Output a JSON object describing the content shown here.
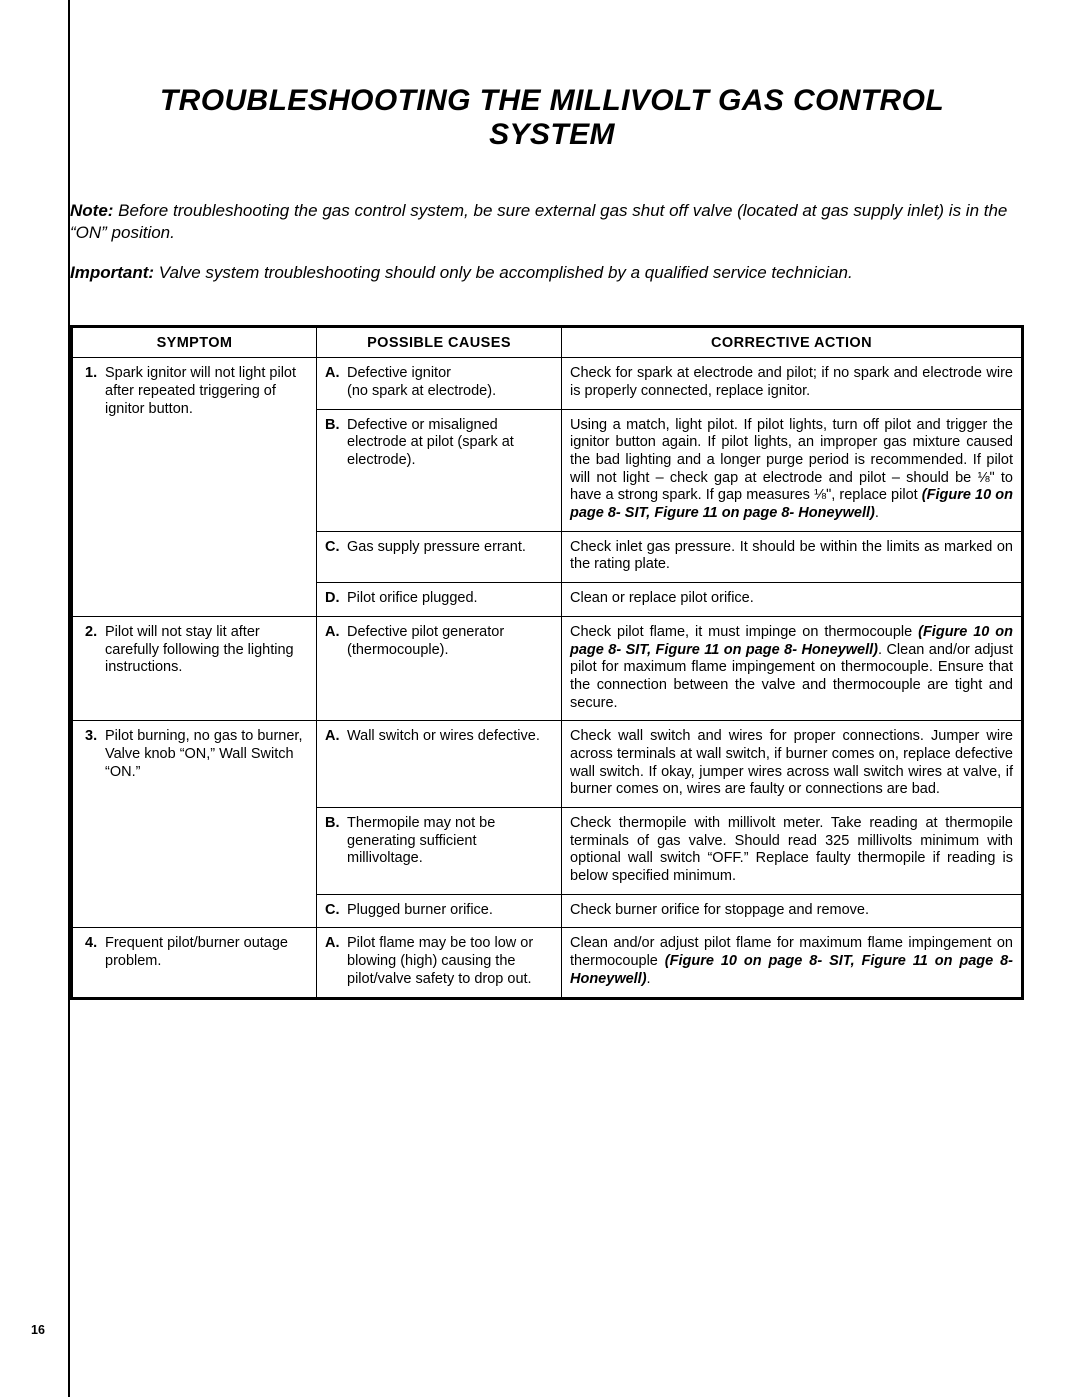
{
  "title": "TROUBLESHOOTING THE MILLIVOLT GAS CONTROL SYSTEM",
  "note_lead": "Note:",
  "note_text": " Before troubleshooting the gas control system, be sure external gas shut off valve (located at gas supply inlet) is in the “ON” position.",
  "important_lead": "Important:",
  "important_text": " Valve system troubleshooting should only be accomplished by a qualified service technician.",
  "headers": {
    "symptom": "SYMPTOM",
    "causes": "POSSIBLE CAUSES",
    "action": "CORRECTIVE ACTION"
  },
  "s1": {
    "n": "1.",
    "t": "Spark ignitor will not light pilot after repeated triggering of ignitor button."
  },
  "s1a": {
    "l": "A.",
    "t": "Defective ignitor\n(no spark at electrode)."
  },
  "s1a_act": "Check for spark at electrode and pilot; if no spark and electrode wire is properly connected, replace ignitor.",
  "s1b": {
    "l": "B.",
    "t": "Defective or misaligned electrode at pilot (spark at electrode)."
  },
  "s1b_act_1": "Using a match, light pilot. If pilot lights, turn off pilot and trigger the ignitor button again. If pilot lights, an improper gas mixture caused the bad lighting and a longer purge period is recommended. If pilot will not light – check gap at electrode and pilot – should be ⅛ʺ to have a strong spark. If gap measures ⅛ʺ, replace pilot ",
  "s1b_act_bi": "(Figure 10 on page 8- SIT, Figure 11 on page 8- Honeywell)",
  "s1b_act_2": ".",
  "s1c": {
    "l": "C.",
    "t": "Gas supply pressure errant."
  },
  "s1c_act": "Check inlet gas pressure. It should be within the limits as marked on the rating plate.",
  "s1d": {
    "l": "D.",
    "t": "Pilot orifice plugged."
  },
  "s1d_act": "Clean or replace pilot orifice.",
  "s2": {
    "n": "2.",
    "t": "Pilot will not stay lit after carefully following the lighting instructions."
  },
  "s2a": {
    "l": "A.",
    "t": "Defective pilot generator (thermocouple)."
  },
  "s2a_act_1": "Check pilot flame, it must impinge on thermocouple ",
  "s2a_act_bi": "(Figure 10 on page 8- SIT, Figure 11 on page 8- Honeywell)",
  "s2a_act_2": ". Clean and/or adjust pilot for maximum flame impingement on thermocouple. Ensure that the connection between the valve and thermocouple are tight and secure.",
  "s3": {
    "n": "3.",
    "t": "Pilot burning, no gas to burner, Valve knob “ON,” Wall Switch “ON.”"
  },
  "s3a": {
    "l": "A.",
    "t": "Wall switch or wires defective."
  },
  "s3a_act": "Check wall switch and wires for proper connections. Jumper wire across terminals at wall switch, if burner comes on, replace defective wall switch. If okay, jumper wires across wall switch wires at valve, if burner comes on, wires are faulty or connections are bad.",
  "s3b": {
    "l": "B.",
    "t": "Thermopile may not be generating sufficient millivoltage."
  },
  "s3b_act": "Check thermopile with millivolt meter. Take reading at thermo­pile terminals of gas valve. Should read 325 millivolts mini­mum with optional wall switch “OFF.” Replace faulty thermo­pile if reading is below specified minimum.",
  "s3c": {
    "l": "C.",
    "t": "Plugged burner orifice."
  },
  "s3c_act": "Check burner orifice for stoppage and remove.",
  "s4": {
    "n": "4.",
    "t": "Frequent pilot/burner outage problem."
  },
  "s4a": {
    "l": "A.",
    "t": "Pilot flame may be too low or blowing (high) causing the pilot/valve safety to drop out."
  },
  "s4a_act_1": "Clean and/or adjust pilot flame for maximum flame impinge­ment on thermocouple ",
  "s4a_act_bi": "(Figure 10 on page 8- SIT, Figure 11 on page 8- Honeywell)",
  "s4a_act_2": ".",
  "page_number": "16"
}
